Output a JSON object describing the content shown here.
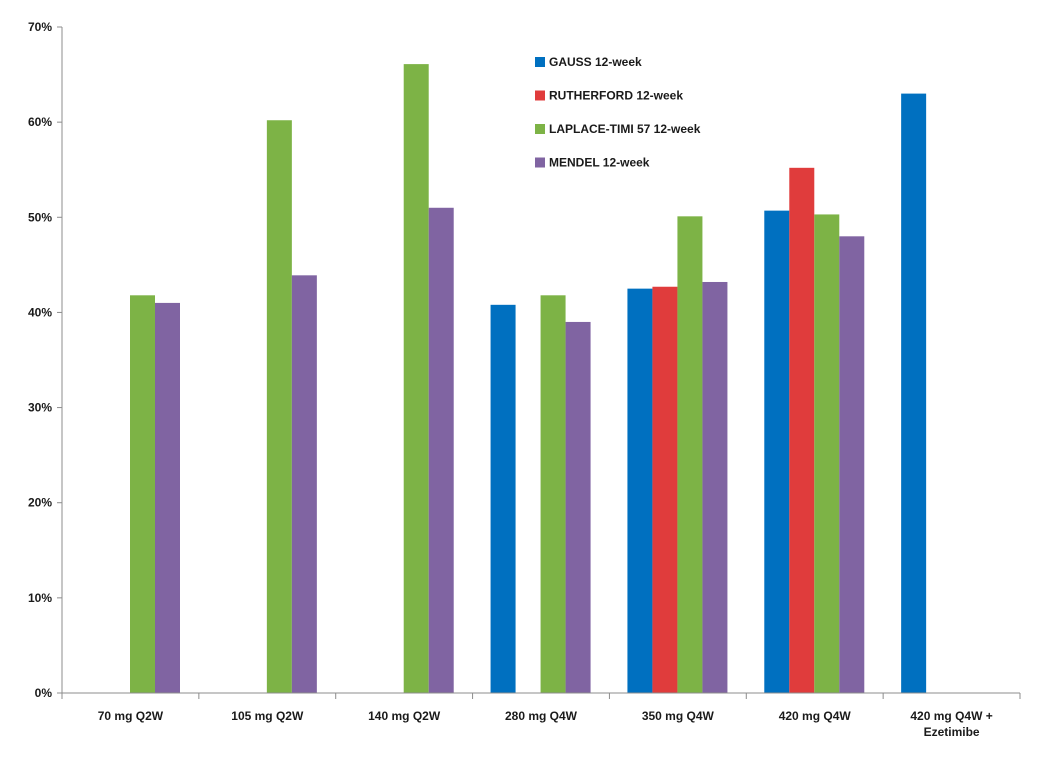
{
  "chart_data": {
    "type": "bar",
    "title": "",
    "xlabel": "",
    "ylabel": "",
    "ylim": [
      0,
      70
    ],
    "y_ticks": [
      0,
      10,
      20,
      30,
      40,
      50,
      60,
      70
    ],
    "y_tick_labels": [
      "0%",
      "10%",
      "20%",
      "30%",
      "40%",
      "50%",
      "60%",
      "70%"
    ],
    "grid": false,
    "legend_position": "top-center",
    "categories": [
      [
        "70 mg Q2W"
      ],
      [
        "105 mg Q2W"
      ],
      [
        "140 mg Q2W"
      ],
      [
        "280 mg Q4W"
      ],
      [
        "350 mg Q4W"
      ],
      [
        "420 mg Q4W"
      ],
      [
        "420 mg Q4W +",
        "Ezetimibe"
      ]
    ],
    "series": [
      {
        "name": "GAUSS 12-week",
        "color": "#0070C0",
        "values": [
          null,
          null,
          null,
          40.8,
          42.5,
          50.7,
          63.0
        ]
      },
      {
        "name": "RUTHERFORD 12-week",
        "color": "#E03C3C",
        "values": [
          null,
          null,
          null,
          null,
          42.7,
          55.2,
          null
        ]
      },
      {
        "name": "LAPLACE-TIMI 57 12-week",
        "color": "#7DB346",
        "values": [
          41.8,
          60.2,
          66.1,
          41.8,
          50.1,
          50.3,
          null
        ]
      },
      {
        "name": "MENDEL 12-week",
        "color": "#8064A2",
        "values": [
          41.0,
          43.9,
          51.0,
          39.0,
          43.2,
          48.0,
          null
        ]
      }
    ]
  }
}
